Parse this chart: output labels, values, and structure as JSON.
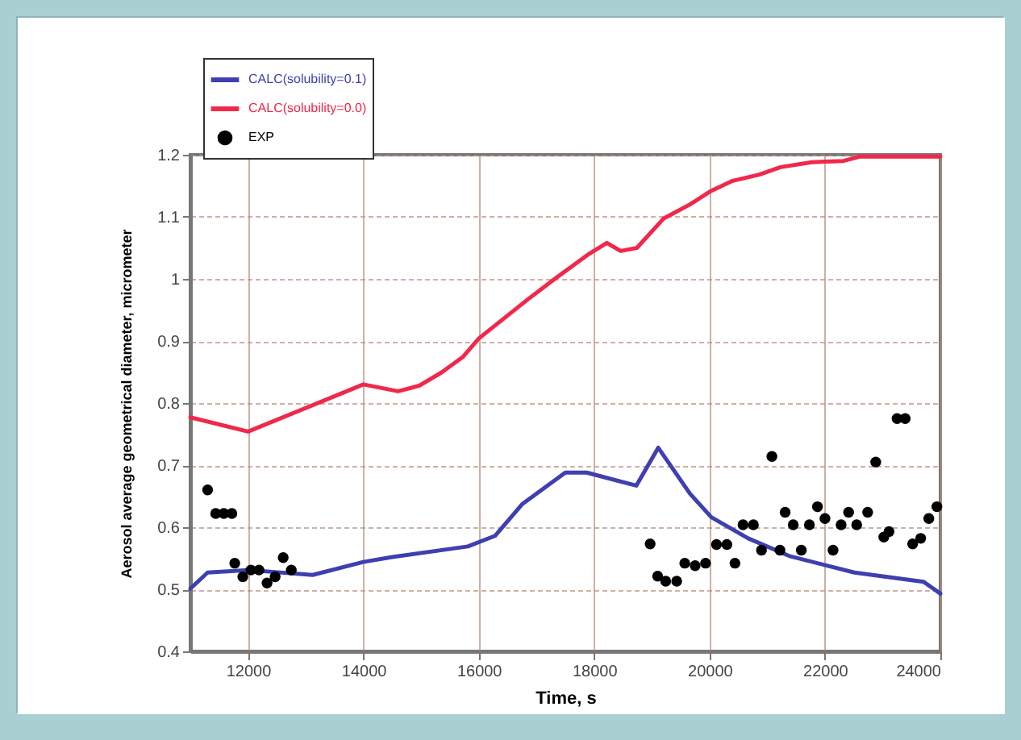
{
  "chart_data": {
    "type": "line",
    "xlabel": "Time, s",
    "ylabel": "Aerosol average geometrical diameter,  micrometer",
    "xlim": [
      11000,
      24000
    ],
    "xticks": [
      12000,
      14000,
      16000,
      18000,
      20000,
      22000,
      24000
    ],
    "ylim": [
      0.4,
      1.2
    ],
    "yticks": [
      0.4,
      0.5,
      0.6,
      0.7,
      0.8,
      0.9,
      1,
      1.1,
      1.2
    ],
    "grid": true,
    "legend": "top left",
    "series": [
      {
        "name": "CALC(solubility=0.1)",
        "color": "#3f3fb0",
        "x": [
          11000,
          11300,
          12000,
          13120,
          14000,
          14500,
          15810,
          16280,
          16750,
          17500,
          17870,
          18730,
          19110,
          19660,
          20030,
          20670,
          21400,
          22510,
          23710,
          24000
        ],
        "values": [
          0.501,
          0.527,
          0.531,
          0.523,
          0.544,
          0.552,
          0.569,
          0.586,
          0.637,
          0.688,
          0.688,
          0.667,
          0.728,
          0.654,
          0.616,
          0.582,
          0.553,
          0.527,
          0.512,
          0.493
        ]
      },
      {
        "name": "CALC(solubility=0.0)",
        "color": "#f0284a",
        "x": [
          11000,
          12000,
          14000,
          14600,
          14970,
          15350,
          15720,
          16000,
          16850,
          17330,
          17890,
          18220,
          18460,
          18740,
          19200,
          19660,
          20030,
          20400,
          20860,
          21230,
          21770,
          22320,
          22600,
          24000
        ],
        "values": [
          0.777,
          0.754,
          0.83,
          0.819,
          0.828,
          0.849,
          0.874,
          0.904,
          0.967,
          1.001,
          1.039,
          1.058,
          1.045,
          1.05,
          1.097,
          1.12,
          1.142,
          1.158,
          1.168,
          1.18,
          1.188,
          1.19,
          1.197,
          1.197
        ]
      },
      {
        "name": "EXP",
        "color": "#000000",
        "type": "scatter",
        "marker": "circle",
        "x": [
          11300,
          11440,
          11580,
          11720,
          11770,
          11910,
          12050,
          12190,
          12330,
          12470,
          12610,
          12750,
          18970,
          19100,
          19240,
          19430,
          19570,
          19750,
          19930,
          20120,
          20300,
          20440,
          20580,
          20760,
          20900,
          21080,
          21220,
          21310,
          21450,
          21590,
          21730,
          21870,
          22000,
          22140,
          22280,
          22410,
          22550,
          22740,
          22880,
          23020,
          23110,
          23250,
          23390,
          23520,
          23660,
          23800,
          23940
        ],
        "values": [
          0.66,
          0.622,
          0.622,
          0.622,
          0.542,
          0.52,
          0.531,
          0.531,
          0.51,
          0.52,
          0.551,
          0.531,
          0.573,
          0.521,
          0.513,
          0.513,
          0.542,
          0.538,
          0.542,
          0.572,
          0.572,
          0.542,
          0.604,
          0.604,
          0.563,
          0.714,
          0.563,
          0.624,
          0.604,
          0.563,
          0.604,
          0.633,
          0.614,
          0.563,
          0.604,
          0.624,
          0.604,
          0.624,
          0.705,
          0.584,
          0.593,
          0.775,
          0.775,
          0.573,
          0.582,
          0.614,
          0.633
        ]
      }
    ]
  }
}
